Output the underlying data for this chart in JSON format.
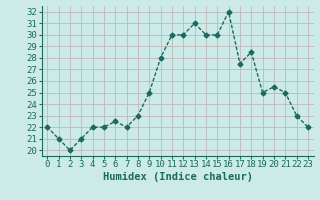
{
  "x": [
    0,
    1,
    2,
    3,
    4,
    5,
    6,
    7,
    8,
    9,
    10,
    11,
    12,
    13,
    14,
    15,
    16,
    17,
    18,
    19,
    20,
    21,
    22,
    23
  ],
  "y": [
    22,
    21,
    20,
    21,
    22,
    22,
    22.5,
    22,
    23,
    25,
    28,
    30,
    30,
    31,
    30,
    30,
    32,
    27.5,
    28.5,
    25,
    25.5,
    25,
    23,
    22
  ],
  "line_color": "#1a6b5a",
  "marker": "D",
  "marker_size": 2.5,
  "linewidth": 1.0,
  "xlabel": "Humidex (Indice chaleur)",
  "ylim": [
    19.5,
    32.5
  ],
  "xlim": [
    -0.5,
    23.5
  ],
  "yticks": [
    20,
    21,
    22,
    23,
    24,
    25,
    26,
    27,
    28,
    29,
    30,
    31,
    32
  ],
  "xticks": [
    0,
    1,
    2,
    3,
    4,
    5,
    6,
    7,
    8,
    9,
    10,
    11,
    12,
    13,
    14,
    15,
    16,
    17,
    18,
    19,
    20,
    21,
    22,
    23
  ],
  "bg_color": "#cceae8",
  "grid_color": "#c0b8b8",
  "tick_color": "#1a6b5a",
  "tick_fontsize": 6.5,
  "xlabel_fontsize": 7.5
}
